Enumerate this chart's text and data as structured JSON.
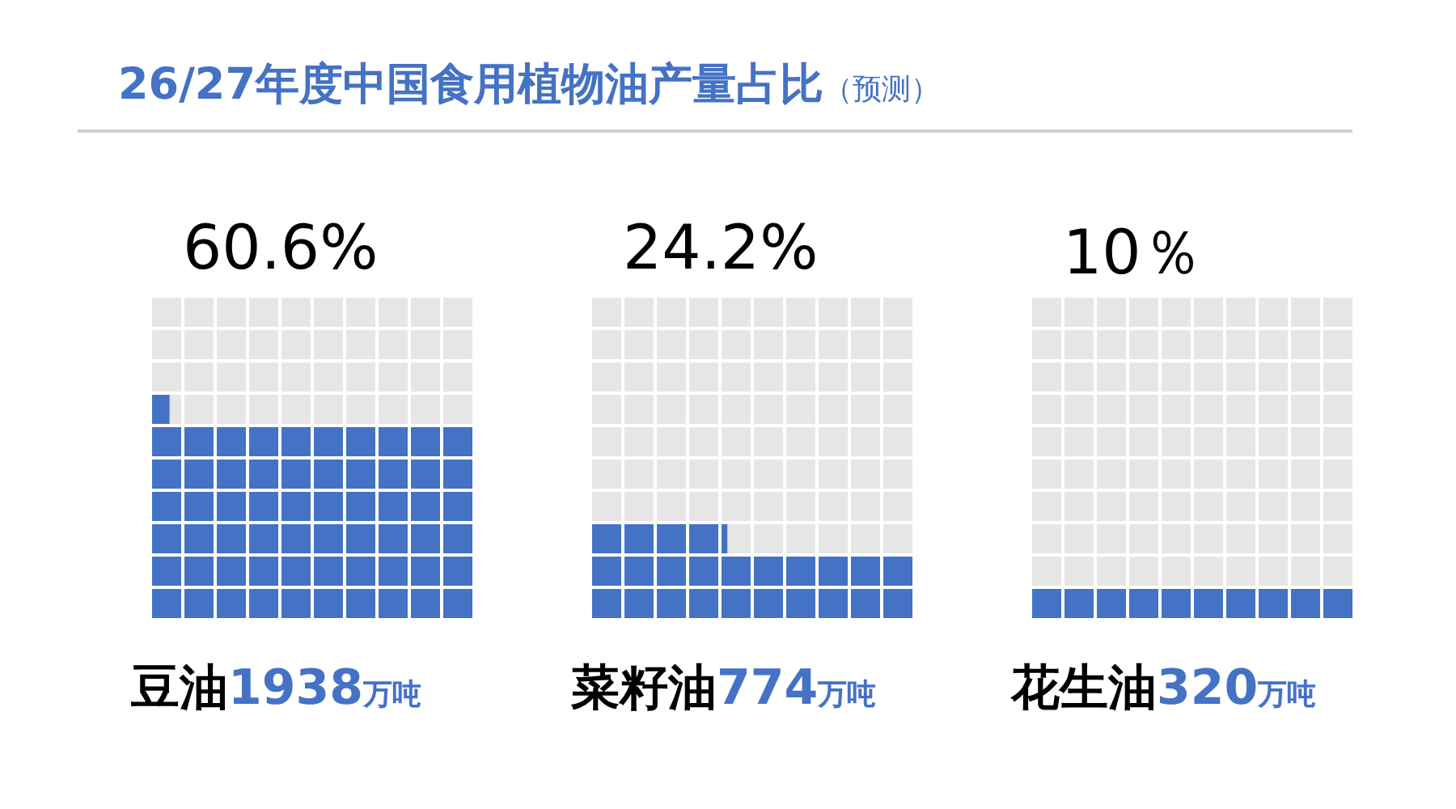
{
  "chart_data": {
    "type": "other",
    "title": "26/27年度中国食用植物油产量占比",
    "subtitle": "（预测）",
    "categories": [
      "豆油",
      "菜籽油",
      "花生油"
    ],
    "series": [
      {
        "color": "#4472c4",
        "values": [
          60.6,
          24.2,
          10
        ],
        "value_labels": [
          "60.6%",
          "24.2%",
          "10％"
        ]
      },
      {
        "color": "#4472c4",
        "values": [
          1938,
          774,
          320
        ]
      }
    ],
    "ylabel": "万吨",
    "data_labels": true
  }
}
